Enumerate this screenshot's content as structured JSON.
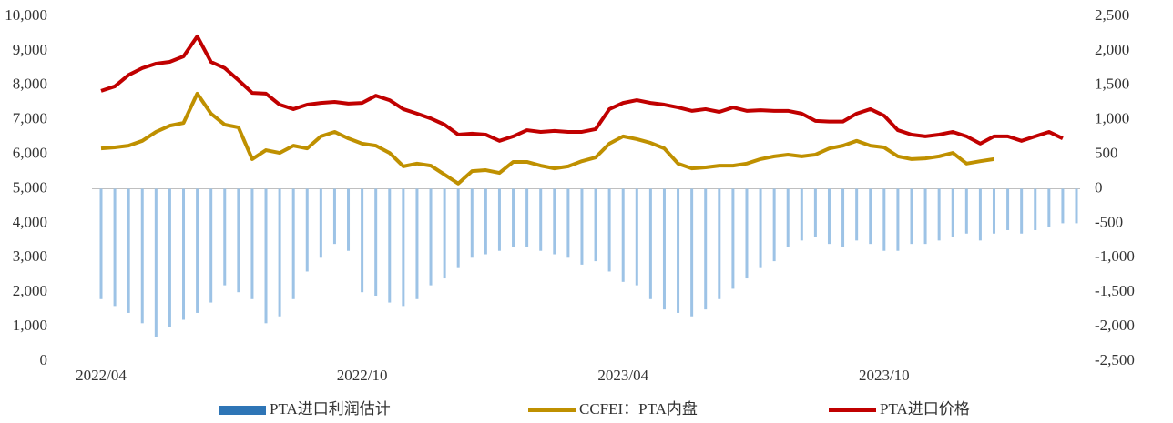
{
  "chart_data": {
    "type": "bar-line",
    "categories": [
      "2022/04",
      null,
      null,
      null,
      null,
      null,
      null,
      null,
      null,
      null,
      null,
      null,
      null,
      null,
      null,
      null,
      null,
      null,
      null,
      "2022/10",
      null,
      null,
      null,
      null,
      null,
      null,
      null,
      null,
      null,
      null,
      null,
      null,
      null,
      null,
      null,
      null,
      null,
      null,
      "2023/04",
      null,
      null,
      null,
      null,
      null,
      null,
      null,
      null,
      null,
      null,
      null,
      null,
      null,
      null,
      null,
      null,
      null,
      null,
      "2023/10",
      null,
      null,
      null,
      null,
      null,
      null,
      null,
      null,
      null,
      null,
      null,
      null,
      null,
      null
    ],
    "ylim": [
      0,
      10000
    ],
    "yticks": [
      0,
      {
        "value": 1000,
        "label": "1,000"
      },
      {
        "value": 2000,
        "label": "2,000"
      },
      {
        "value": 3000,
        "label": "3,000"
      },
      {
        "value": 4000,
        "label": "4,000"
      },
      {
        "value": 5000,
        "label": "5,000"
      },
      {
        "value": 6000,
        "label": "6,000"
      },
      {
        "value": 7000,
        "label": "7,000"
      },
      {
        "value": 8000,
        "label": "8,000"
      },
      {
        "value": 9000,
        "label": "9,000"
      },
      {
        "value": 10000,
        "label": "10,000"
      }
    ],
    "y2lim": [
      -2500,
      2500
    ],
    "y2ticks": [
      {
        "value": -2500,
        "label": "-2,500"
      },
      {
        "value": -2000,
        "label": "-2,000"
      },
      {
        "value": -1500,
        "label": "-1,500"
      },
      {
        "value": -1000,
        "label": "-1,000"
      },
      -500,
      0,
      500,
      {
        "value": 1000,
        "label": "1,000"
      },
      {
        "value": 1500,
        "label": "1,500"
      },
      {
        "value": 2000,
        "label": "2,000"
      },
      {
        "value": 2500,
        "label": "2,500"
      }
    ],
    "series": [
      {
        "name": "PTA进口利润估计",
        "type": "bar",
        "axis": "y2",
        "color": "#9dc3e6",
        "values": [
          -1600,
          -1700,
          -1800,
          -1950,
          -2150,
          -2000,
          -1900,
          -1800,
          -1650,
          -1400,
          -1500,
          -1600,
          -1950,
          -1850,
          -1600,
          -1200,
          -1000,
          -800,
          -900,
          -1500,
          -1550,
          -1650,
          -1700,
          -1600,
          -1400,
          -1300,
          -1150,
          -1000,
          -950,
          -900,
          -850,
          -850,
          -900,
          -950,
          -1000,
          -1100,
          -1050,
          -1200,
          -1350,
          -1400,
          -1600,
          -1750,
          -1800,
          -1850,
          -1750,
          -1600,
          -1450,
          -1300,
          -1150,
          -1050,
          -850,
          -750,
          -700,
          -800,
          -850,
          -750,
          -800,
          -900,
          -900,
          -800,
          -800,
          -750,
          -700,
          -650,
          -750,
          -650,
          -600,
          -650,
          -600,
          -550,
          -500,
          -500
        ]
      },
      {
        "name": "CCFEI：PTA内盘",
        "type": "line",
        "color": "#bf9000",
        "values": [
          6170,
          6200,
          6250,
          6390,
          6650,
          6830,
          6910,
          7760,
          7180,
          6860,
          6780,
          5860,
          6120,
          6040,
          6250,
          6170,
          6520,
          6650,
          6460,
          6310,
          6250,
          6040,
          5650,
          5730,
          5670,
          5410,
          5150,
          5510,
          5540,
          5460,
          5780,
          5780,
          5670,
          5590,
          5650,
          5800,
          5910,
          6310,
          6520,
          6440,
          6330,
          6170,
          5730,
          5590,
          5620,
          5670,
          5670,
          5730,
          5860,
          5940,
          5990,
          5940,
          5990,
          6170,
          6250,
          6390,
          6250,
          6200,
          5940,
          5860,
          5880,
          5940,
          6040,
          5730,
          5800,
          5860,
          null,
          null,
          null,
          null,
          null,
          null
        ]
      },
      {
        "name": "PTA进口价格",
        "type": "line",
        "color": "#c00000",
        "values": [
          7840,
          7970,
          8300,
          8500,
          8630,
          8680,
          8840,
          9420,
          8680,
          8500,
          8150,
          7780,
          7760,
          7440,
          7310,
          7440,
          7490,
          7520,
          7470,
          7490,
          7700,
          7570,
          7310,
          7180,
          7040,
          6860,
          6570,
          6600,
          6570,
          6390,
          6520,
          6700,
          6650,
          6680,
          6650,
          6650,
          6730,
          7310,
          7490,
          7570,
          7490,
          7440,
          7360,
          7260,
          7310,
          7230,
          7360,
          7260,
          7280,
          7260,
          7260,
          7180,
          6970,
          6950,
          6950,
          7180,
          7310,
          7120,
          6700,
          6570,
          6520,
          6570,
          6650,
          6520,
          6310,
          6520,
          6520,
          6390,
          6520,
          6650,
          6460,
          null
        ]
      }
    ]
  }
}
